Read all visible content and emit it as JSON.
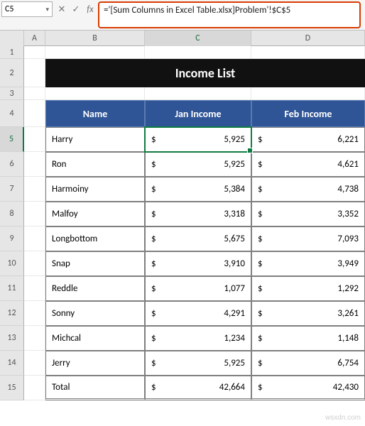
{
  "nameBox": "C5",
  "formula": "='[Sum Columns in Excel Table.xlsx]Problem'!$C$5",
  "columns": [
    "A",
    "B",
    "C",
    "D"
  ],
  "selectedCol": "C",
  "selectedRow": 5,
  "title": "Income List",
  "headers": {
    "name": "Name",
    "jan": "Jan Income",
    "feb": "Feb Income"
  },
  "currency": "$",
  "rows": [
    {
      "r": 5,
      "name": "Harry",
      "jan": "5,925",
      "feb": "6,221"
    },
    {
      "r": 6,
      "name": "Ron",
      "jan": "5,925",
      "feb": "4,621"
    },
    {
      "r": 7,
      "name": "Harmoiny",
      "jan": "5,384",
      "feb": "4,738"
    },
    {
      "r": 8,
      "name": "Malfoy",
      "jan": "3,318",
      "feb": "3,352"
    },
    {
      "r": 9,
      "name": "Longbottom",
      "jan": "5,675",
      "feb": "7,093"
    },
    {
      "r": 10,
      "name": "Snap",
      "jan": "3,910",
      "feb": "3,949"
    },
    {
      "r": 11,
      "name": "Reddle",
      "jan": "1,077",
      "feb": "1,292"
    },
    {
      "r": 12,
      "name": "Sonny",
      "jan": "4,291",
      "feb": "3,261"
    },
    {
      "r": 13,
      "name": "Michcal",
      "jan": "1,234",
      "feb": "1,148"
    },
    {
      "r": 14,
      "name": "Jerry",
      "jan": "5,925",
      "feb": "6,754"
    }
  ],
  "total": {
    "r": 15,
    "label": "Total",
    "jan": "42,664",
    "feb": "42,430"
  },
  "watermark": "wsxdn.com",
  "colors": {
    "headerBg": "#2f5597",
    "titleBg": "#111111",
    "selection": "#107c41",
    "formulaBorder": "#d83b01"
  }
}
